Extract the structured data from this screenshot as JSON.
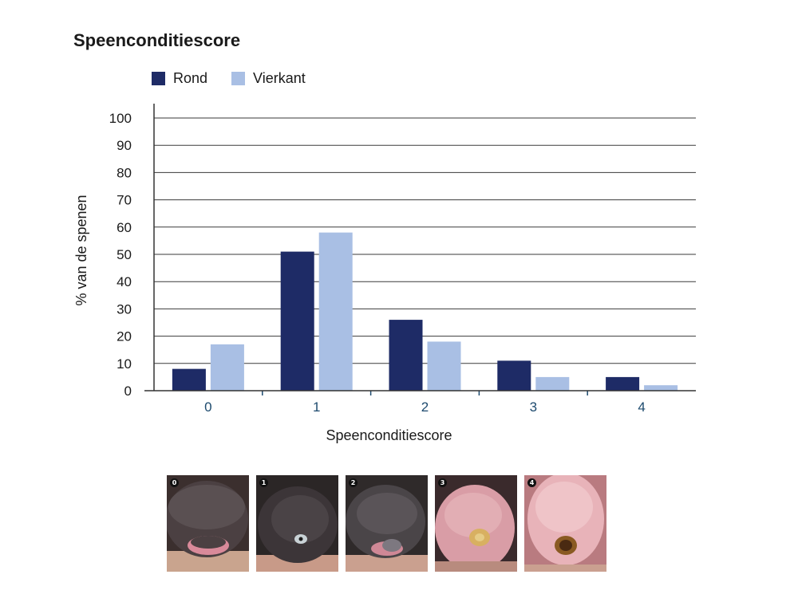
{
  "colors": {
    "rond": "#1e2b66",
    "vierkant": "#a9bfe4",
    "grid": "#3a3a3a",
    "tick": "#1d4a6e"
  },
  "chart_data": {
    "type": "bar",
    "title": "Speenconditiescore",
    "xlabel": "Speenconditiescore",
    "ylabel": "% van de spenen",
    "categories": [
      "0",
      "1",
      "2",
      "3",
      "4"
    ],
    "ylim": [
      0,
      100
    ],
    "yticks": [
      0,
      10,
      20,
      30,
      40,
      50,
      60,
      70,
      80,
      90,
      100
    ],
    "grid": true,
    "legend_position": "top-left",
    "series": [
      {
        "name": "Rond",
        "values": [
          8,
          51,
          26,
          11,
          5
        ]
      },
      {
        "name": "Vierkant",
        "values": [
          17,
          58,
          18,
          5,
          2
        ]
      }
    ]
  },
  "photos": [
    {
      "badge": "0",
      "icon": "teat-score-0-photo"
    },
    {
      "badge": "1",
      "icon": "teat-score-1-photo"
    },
    {
      "badge": "2",
      "icon": "teat-score-2-photo"
    },
    {
      "badge": "3",
      "icon": "teat-score-3-photo"
    },
    {
      "badge": "4",
      "icon": "teat-score-4-photo"
    }
  ]
}
